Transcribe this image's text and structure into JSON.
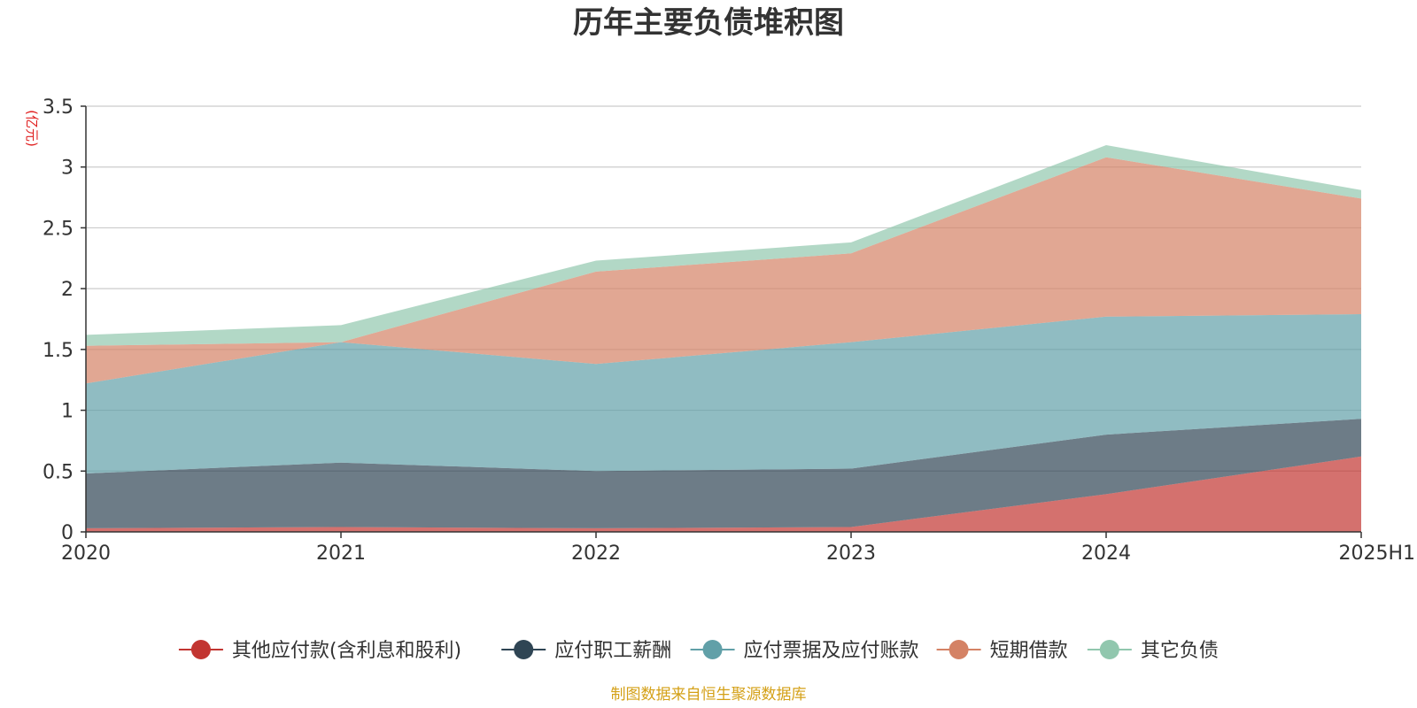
{
  "chart_data": {
    "type": "area",
    "stacked": true,
    "title": "历年主要负债堆积图",
    "ylabel": "(亿元)",
    "xlabel": "",
    "categories": [
      "2020",
      "2021",
      "2022",
      "2023",
      "2024",
      "2025H1"
    ],
    "ylim": [
      0,
      3.5
    ],
    "yticks": [
      "0",
      "0.5",
      "1",
      "1.5",
      "2",
      "2.5",
      "3",
      "3.5"
    ],
    "grid": true,
    "legend_position": "bottom",
    "series": [
      {
        "name": "其他应付款(含利息和股利)",
        "color": "#c23531",
        "values": [
          0.03,
          0.04,
          0.03,
          0.04,
          0.31,
          0.62
        ]
      },
      {
        "name": "应付职工薪酬",
        "color": "#2f4554",
        "values": [
          0.45,
          0.53,
          0.47,
          0.48,
          0.49,
          0.31
        ]
      },
      {
        "name": "应付票据及应付账款",
        "color": "#61a0a8",
        "values": [
          0.74,
          0.99,
          0.88,
          1.04,
          0.97,
          0.86
        ]
      },
      {
        "name": "短期借款",
        "color": "#d48265",
        "values": [
          0.31,
          0.0,
          0.76,
          0.73,
          1.31,
          0.95
        ]
      },
      {
        "name": "其它负债",
        "color": "#91c7ae",
        "values": [
          0.09,
          0.14,
          0.09,
          0.09,
          0.1,
          0.07
        ]
      }
    ]
  },
  "footer": {
    "source": "制图数据来自恒生聚源数据库"
  }
}
